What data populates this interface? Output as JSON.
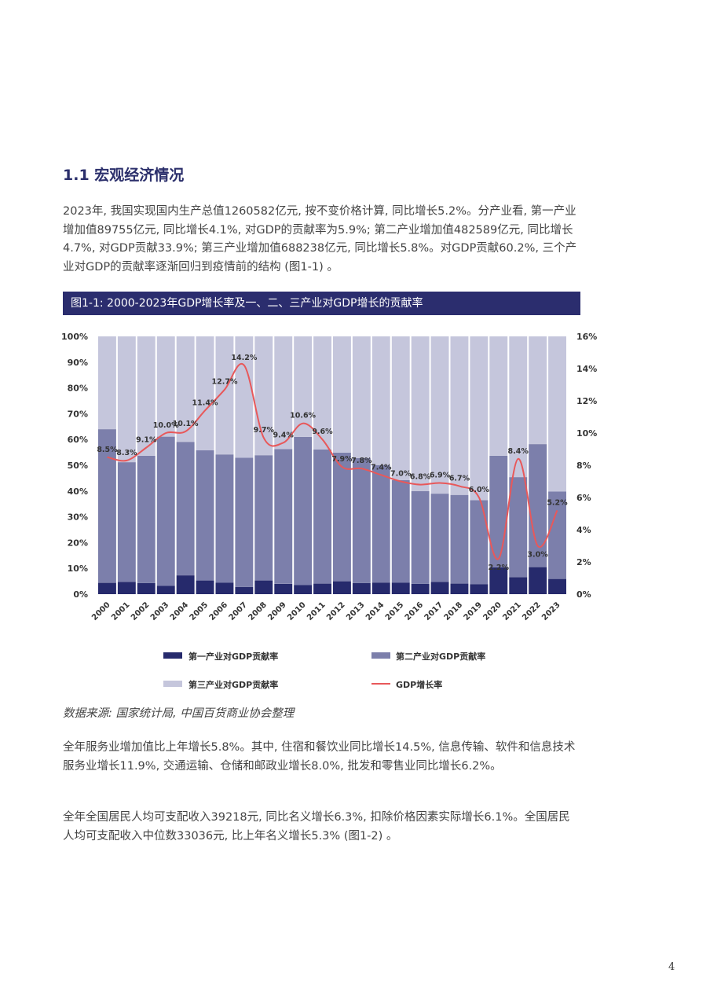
{
  "section": {
    "title": "1.1 宏观经济情况"
  },
  "paragraphs": {
    "p1": "2023年, 我国实现国内生产总值1260582亿元, 按不变价格计算, 同比增长5.2%。分产业看, 第一产业增加值89755亿元, 同比增长4.1%, 对GDP的贡献率为5.9%; 第二产业增加值482589亿元, 同比增长4.7%, 对GDP贡献33.9%; 第三产业增加值688238亿元, 同比增长5.8%。对GDP贡献60.2%, 三个产业对GDP的贡献率逐渐回归到疫情前的结构 (图1-1) 。",
    "p2": "全年服务业增加值比上年增长5.8%。其中, 住宿和餐饮业同比增长14.5%, 信息传输、软件和信息技术服务业增长11.9%, 交通运输、仓储和邮政业增长8.0%, 批发和零售业同比增长6.2%。",
    "p3": "全年全国居民人均可支配收入39218元, 同比名义增长6.3%, 扣除价格因素实际增长6.1%。全国居民人均可支配收入中位数33036元, 比上年名义增长5.3% (图1-2) 。"
  },
  "figure": {
    "banner": "图1-1: 2000-2023年GDP增长率及一、二、三产业对GDP增长的贡献率",
    "source": "数据来源: 国家统计局, 中国百货商业协会整理"
  },
  "page_number": "4",
  "colors": {
    "primary": "#262a6c",
    "secondary": "#7c7fab",
    "tertiary": "#c5c6dc",
    "line": "#e8585a",
    "banner": "#2b2d6e"
  },
  "chart_data": {
    "type": "bar",
    "stacked": true,
    "categories": [
      "2000",
      "2001",
      "2002",
      "2003",
      "2004",
      "2005",
      "2006",
      "2007",
      "2008",
      "2009",
      "2010",
      "2011",
      "2012",
      "2013",
      "2014",
      "2015",
      "2016",
      "2017",
      "2018",
      "2019",
      "2020",
      "2021",
      "2022",
      "2023"
    ],
    "series": [
      {
        "name": "第一产业对GDP贡献率",
        "axis": "left",
        "values": [
          4.4,
          4.8,
          4.3,
          3.2,
          7.3,
          5.3,
          4.5,
          2.8,
          5.3,
          4.0,
          3.6,
          4.1,
          5.0,
          4.3,
          4.5,
          4.5,
          4.0,
          4.8,
          4.1,
          3.9,
          10.4,
          6.6,
          10.5,
          5.9
        ]
      },
      {
        "name": "第二产业对GDP贡献率",
        "axis": "left",
        "values": [
          59.6,
          46.4,
          49.4,
          57.9,
          51.8,
          50.5,
          49.7,
          50.1,
          48.6,
          52.3,
          57.4,
          52.0,
          49.9,
          48.5,
          45.6,
          39.7,
          36.0,
          34.2,
          34.4,
          32.6,
          43.3,
          38.8,
          47.7,
          33.9
        ]
      },
      {
        "name": "第三产业对GDP贡献率",
        "axis": "left",
        "values": [
          36.0,
          48.8,
          46.3,
          38.9,
          40.9,
          44.2,
          45.8,
          47.1,
          46.1,
          43.7,
          39.0,
          43.9,
          45.1,
          47.2,
          49.9,
          55.8,
          60.0,
          61.0,
          61.5,
          63.5,
          46.3,
          54.6,
          41.8,
          60.2
        ]
      },
      {
        "name": "GDP增长率",
        "axis": "right",
        "type": "line",
        "values": [
          8.5,
          8.3,
          9.1,
          10.0,
          10.1,
          11.4,
          12.7,
          14.2,
          9.7,
          9.4,
          10.6,
          9.6,
          7.9,
          7.8,
          7.4,
          7.0,
          6.8,
          6.9,
          6.7,
          6.0,
          2.2,
          8.4,
          3.0,
          5.2
        ]
      }
    ],
    "data_labels": [
      "8.5%",
      "8.3%",
      "9.1%",
      "10.0%",
      "10.1%",
      "11.4%",
      "12.7%",
      "14.2%",
      "9.7%",
      "9.4%",
      "10.6%",
      "9.6%",
      "7.9%",
      "7.8%",
      "7.4%",
      "7.0%",
      "6.8%",
      "6.9%",
      "6.7%",
      "6.0%",
      "2.2%",
      "8.4%",
      "3.0%",
      "5.2%"
    ],
    "y_left": {
      "ticks": [
        "0%",
        "10%",
        "20%",
        "30%",
        "40%",
        "50%",
        "60%",
        "70%",
        "80%",
        "90%",
        "100%"
      ],
      "range": [
        0,
        100
      ]
    },
    "y_right": {
      "ticks": [
        "0%",
        "2%",
        "4%",
        "6%",
        "8%",
        "10%",
        "12%",
        "14%",
        "16%"
      ],
      "range": [
        0,
        16
      ]
    },
    "legend": [
      "第一产业对GDP贡献率",
      "第二产业对GDP贡献率",
      "第三产业对GDP贡献率",
      "GDP增长率"
    ],
    "legend_position": "bottom",
    "grid": false
  }
}
